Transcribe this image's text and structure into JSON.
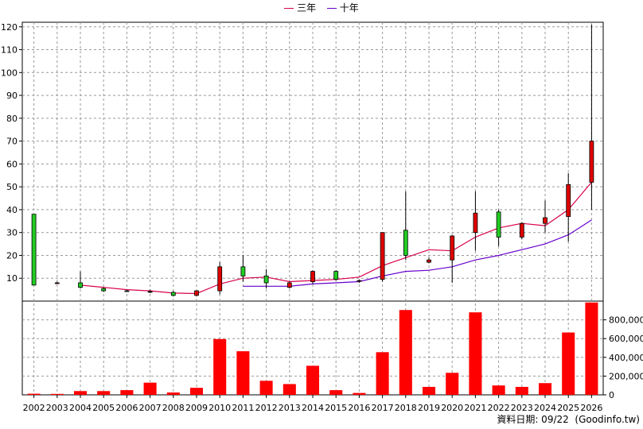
{
  "legend": {
    "items": [
      {
        "label": "三年",
        "color": "#d9004c"
      },
      {
        "label": "十年",
        "color": "#6600cc"
      }
    ]
  },
  "footer_note": "資料日期: 09/22  (Goodinfo.tw)",
  "colors": {
    "up": "#e00000",
    "down": "#22cc22",
    "volume": "#ff0000",
    "grid": "#9a9a9a"
  },
  "chart_data": [
    {
      "type": "candlestick",
      "categories": [
        "2002",
        "2003",
        "2004",
        "2005",
        "2006",
        "2007",
        "2008",
        "2009",
        "2010",
        "2011",
        "2012",
        "2013",
        "2014",
        "2015",
        "2016",
        "2017",
        "2018",
        "2019",
        "2020",
        "2021",
        "2022",
        "2023",
        "2024",
        "2025",
        "2026"
      ],
      "ylim": [
        0,
        122
      ],
      "yticks": [
        10,
        20,
        30,
        40,
        50,
        60,
        70,
        80,
        90,
        100,
        110,
        120
      ],
      "grid": true,
      "legend_position": "top-center",
      "ohlc": [
        {
          "o": 38,
          "h": 38,
          "l": 7,
          "c": 7
        },
        {
          "o": 8,
          "h": 8.5,
          "l": 7.5,
          "c": 8
        },
        {
          "o": 8,
          "h": 13,
          "l": 5.5,
          "c": 6
        },
        {
          "o": 5.5,
          "h": 6,
          "l": 4,
          "c": 4.5
        },
        {
          "o": 4.5,
          "h": 5,
          "l": 4,
          "c": 4.3
        },
        {
          "o": 4.2,
          "h": 5,
          "l": 3.5,
          "c": 4.1
        },
        {
          "o": 3.8,
          "h": 4.5,
          "l": 2,
          "c": 2.5
        },
        {
          "o": 2.5,
          "h": 4.8,
          "l": 2,
          "c": 4.5
        },
        {
          "o": 4.5,
          "h": 17,
          "l": 3,
          "c": 15
        },
        {
          "o": 15,
          "h": 20,
          "l": 8.5,
          "c": 11
        },
        {
          "o": 11,
          "h": 14,
          "l": 5.5,
          "c": 8
        },
        {
          "o": 6,
          "h": 8.5,
          "l": 5.5,
          "c": 8
        },
        {
          "o": 8.5,
          "h": 13.5,
          "l": 7.5,
          "c": 13
        },
        {
          "o": 13,
          "h": 13.5,
          "l": 9,
          "c": 9.5
        },
        {
          "o": 9,
          "h": 9.5,
          "l": 8,
          "c": 9
        },
        {
          "o": 9.5,
          "h": 30,
          "l": 8.5,
          "c": 30
        },
        {
          "o": 31,
          "h": 48,
          "l": 18,
          "c": 20
        },
        {
          "o": 17,
          "h": 19,
          "l": 16.5,
          "c": 18
        },
        {
          "o": 18,
          "h": 29,
          "l": 8,
          "c": 28.5
        },
        {
          "o": 30,
          "h": 48,
          "l": 22,
          "c": 38.5
        },
        {
          "o": 39,
          "h": 40,
          "l": 24,
          "c": 28
        },
        {
          "o": 28,
          "h": 34.5,
          "l": 27,
          "c": 34
        },
        {
          "o": 34,
          "h": 44,
          "l": 30,
          "c": 36.5
        },
        {
          "o": 37,
          "h": 56,
          "l": 26,
          "c": 51
        },
        {
          "o": 52,
          "h": 121,
          "l": 40,
          "c": 70
        }
      ],
      "series": [
        {
          "name": "三年",
          "color": "#d9004c",
          "values": [
            null,
            null,
            7,
            6,
            5,
            4.5,
            3.5,
            3.3,
            7.5,
            10,
            10.5,
            8.5,
            9,
            9.5,
            10.5,
            15.5,
            19,
            22.5,
            22,
            28,
            32,
            34,
            33,
            40,
            52
          ]
        },
        {
          "name": "十年",
          "color": "#6600cc",
          "values": [
            null,
            null,
            null,
            null,
            null,
            null,
            null,
            null,
            null,
            6.5,
            6.5,
            6.5,
            7.5,
            8,
            8.5,
            11,
            13,
            13.5,
            15,
            18,
            20,
            22.5,
            25,
            29,
            35.5
          ]
        }
      ]
    },
    {
      "type": "bar",
      "categories": [
        "2002",
        "2003",
        "2004",
        "2005",
        "2006",
        "2007",
        "2008",
        "2009",
        "2010",
        "2011",
        "2012",
        "2013",
        "2014",
        "2015",
        "2016",
        "2017",
        "2018",
        "2019",
        "2020",
        "2021",
        "2022",
        "2023",
        "2024",
        "2025",
        "2026"
      ],
      "values": [
        12000,
        10000,
        40000,
        40000,
        50000,
        130000,
        25000,
        75000,
        595000,
        465000,
        150000,
        115000,
        310000,
        50000,
        20000,
        455000,
        905000,
        85000,
        235000,
        880000,
        100000,
        85000,
        125000,
        665000,
        985000
      ],
      "ylim": [
        0,
        1000000
      ],
      "yticks": [
        0,
        200000,
        400000,
        600000,
        800000
      ],
      "ytick_labels": [
        "0",
        "200,000",
        "400,000",
        "600,000",
        "800,000"
      ]
    }
  ]
}
